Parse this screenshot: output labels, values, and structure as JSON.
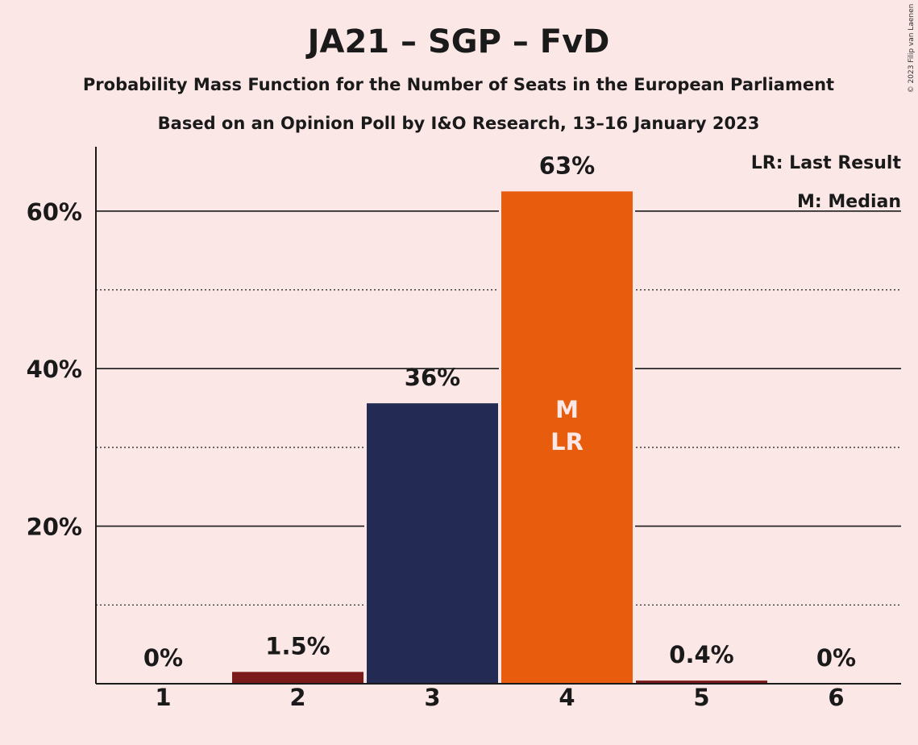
{
  "chart_data": {
    "type": "bar",
    "title": "JA21 – SGP – FvD",
    "subtitle_lines": [
      "Probability Mass Function for the Number of Seats in the European Parliament",
      "Based on an Opinion Poll by I&O Research, 13–16 January 2023"
    ],
    "categories": [
      "1",
      "2",
      "3",
      "4",
      "5",
      "6"
    ],
    "values": [
      0,
      1.5,
      35.6,
      62.5,
      0.4,
      0
    ],
    "value_labels": [
      "0%",
      "1.5%",
      "36%",
      "63%",
      "0.4%",
      "0%"
    ],
    "bar_colors": [
      "#7a1a1a",
      "#7a1a1a",
      "#232b55",
      "#e85c0d",
      "#7a1a1a",
      "#7a1a1a"
    ],
    "inbar_labels": [
      "",
      "",
      "",
      "M\nLR",
      "",
      ""
    ],
    "ylim": [
      0,
      68
    ],
    "y_major_ticks": [
      20,
      40,
      60
    ],
    "y_major_tick_labels": [
      "20%",
      "40%",
      "60%"
    ],
    "y_minor_ticks": [
      10,
      30,
      50
    ],
    "grid": true,
    "legend": {
      "placement": "top-right",
      "entries": [
        "LR: Last Result",
        "M: Median"
      ]
    },
    "copyright": "© 2023 Filip van Laenen"
  }
}
